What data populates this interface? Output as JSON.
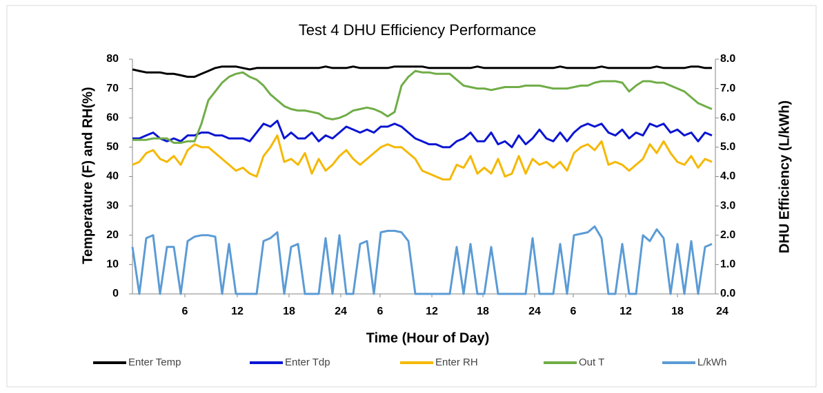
{
  "chart_data": {
    "type": "line",
    "title": "Test 4 DHU Efficiency Performance",
    "x_label": "Time (Hour of Day)",
    "y_label": "Temperature (F) and RH(%)",
    "y2_label": "DHU Efficiency (L/kWh)",
    "x": [
      0,
      1,
      2,
      3,
      4,
      5,
      6,
      7,
      8,
      9,
      10,
      11,
      12,
      13,
      14,
      15,
      16,
      17,
      18,
      19,
      20,
      21,
      22,
      23,
      24,
      25,
      26,
      27,
      28,
      29,
      30,
      31,
      32,
      33,
      34,
      35,
      36,
      37,
      38,
      39,
      40,
      41,
      42,
      43,
      44,
      45,
      46,
      47,
      48,
      49,
      50,
      51,
      52,
      53,
      54,
      55,
      56,
      57,
      58,
      59,
      60,
      61,
      62,
      63,
      64,
      65,
      66,
      67,
      68,
      69,
      70,
      71,
      72,
      73,
      74,
      75,
      76,
      77,
      78,
      79,
      80,
      81,
      82,
      83,
      84
    ],
    "xlim": [
      0,
      85.5
    ],
    "xticks": [
      {
        "value": 7.6,
        "label": "6"
      },
      {
        "value": 15.2,
        "label": "12"
      },
      {
        "value": 22.7,
        "label": "18"
      },
      {
        "value": 30.2,
        "label": "24"
      },
      {
        "value": 35.9,
        "label": "6"
      },
      {
        "value": 43.4,
        "label": "12"
      },
      {
        "value": 50.8,
        "label": "18"
      },
      {
        "value": 58.3,
        "label": "24"
      },
      {
        "value": 63.9,
        "label": "6"
      },
      {
        "value": 71.5,
        "label": "12"
      },
      {
        "value": 79,
        "label": "18"
      },
      {
        "value": 85.5,
        "label": "24"
      }
    ],
    "ylim": [
      0,
      80
    ],
    "yticks": [
      0,
      10,
      20,
      30,
      40,
      50,
      60,
      70,
      80
    ],
    "y2lim": [
      0,
      8
    ],
    "y2ticks": [
      {
        "value": 0,
        "label": "0.0"
      },
      {
        "value": 1,
        "label": "1.0"
      },
      {
        "value": 2,
        "label": "2.0"
      },
      {
        "value": 3,
        "label": "3.0"
      },
      {
        "value": 4,
        "label": "4.0"
      },
      {
        "value": 5,
        "label": "5.0"
      },
      {
        "value": 6,
        "label": "6.0"
      },
      {
        "value": 7,
        "label": "7.0"
      },
      {
        "value": 8,
        "label": "8.0"
      }
    ],
    "grid": false,
    "legend": "bottom",
    "series": [
      {
        "name": "Enter Temp",
        "color": "#000000",
        "values": [
          76.5,
          76,
          75.5,
          75.5,
          75.5,
          75,
          75,
          74.5,
          74,
          74,
          75,
          76,
          77,
          77.5,
          77.5,
          77.5,
          77,
          76.5,
          77,
          77,
          77,
          77,
          77,
          77,
          77,
          77,
          77,
          77,
          77.5,
          77,
          77,
          77,
          77.5,
          77,
          77,
          77,
          77,
          77,
          77.5,
          77.5,
          77.5,
          77.5,
          77.5,
          77,
          77,
          77,
          77,
          77,
          77,
          77,
          77.5,
          77,
          77,
          77,
          77,
          77,
          77,
          77,
          77,
          77,
          77,
          77,
          77.5,
          77,
          77,
          77,
          77,
          77,
          77.5,
          77,
          77,
          77,
          77,
          77,
          77,
          77,
          77.5,
          77,
          77,
          77,
          77,
          77.5,
          77.5,
          77,
          77
        ]
      },
      {
        "name": "Enter Tdp",
        "color": "#0a14d2",
        "values": [
          53,
          53,
          54,
          55,
          53,
          52,
          53,
          52,
          54,
          54,
          55,
          55,
          54,
          54,
          53,
          53,
          53,
          52,
          55,
          58,
          57,
          59,
          53,
          55,
          53,
          53,
          55,
          52,
          54,
          53,
          55,
          57,
          56,
          55,
          56,
          55,
          57,
          57,
          58,
          57,
          55,
          53,
          52,
          51,
          51,
          50,
          50,
          52,
          53,
          55,
          52,
          52,
          55,
          51,
          52,
          50,
          54,
          51,
          53,
          56,
          53,
          52,
          55,
          52,
          55,
          57,
          58,
          57,
          58,
          55,
          54,
          56,
          53,
          55,
          54,
          58,
          57,
          58,
          55,
          56,
          54,
          55,
          52,
          55,
          54
        ]
      },
      {
        "name": "Enter RH",
        "color": "#f5b800",
        "values": [
          44,
          45,
          48,
          49,
          46,
          45,
          47,
          44,
          49,
          51,
          50,
          50,
          48,
          46,
          44,
          42,
          43,
          41,
          40,
          47,
          50,
          54,
          45,
          46,
          44,
          48,
          41,
          46,
          42,
          44,
          47,
          49,
          46,
          44,
          46,
          48,
          50,
          51,
          50,
          50,
          48,
          46,
          42,
          41,
          40,
          39,
          39,
          44,
          43,
          47,
          41,
          43,
          41,
          46,
          40,
          41,
          47,
          41,
          46,
          44,
          45,
          43,
          45,
          42,
          48,
          50,
          51,
          49,
          52,
          44,
          45,
          44,
          42,
          44,
          46,
          51,
          48,
          52,
          48,
          45,
          44,
          47,
          43,
          46,
          45
        ]
      },
      {
        "name": "Out T",
        "color": "#70ad47",
        "values": [
          52.5,
          52.5,
          52.5,
          53,
          53,
          53,
          51.5,
          51.5,
          52,
          52,
          58,
          66,
          69,
          72,
          74,
          75,
          75.5,
          74,
          73,
          71,
          68,
          66,
          64,
          63,
          62.5,
          62.5,
          62,
          61.5,
          60,
          59.5,
          60,
          61,
          62.5,
          63,
          63.5,
          63,
          62,
          60.5,
          62,
          71,
          74,
          76,
          75.5,
          75.5,
          75,
          75,
          75,
          73,
          71,
          70.5,
          70,
          70,
          69.5,
          70,
          70.5,
          70.5,
          70.5,
          71,
          71,
          71,
          70.5,
          70,
          70,
          70,
          70.5,
          71,
          71,
          72,
          72.5,
          72.5,
          72.5,
          72,
          69,
          71,
          72.5,
          72.5,
          72,
          72,
          71,
          70,
          69,
          67,
          65,
          64,
          63
        ]
      },
      {
        "name": "L/kWh",
        "color": "#5b9bd5",
        "axis": "y2",
        "values": [
          1.6,
          0,
          1.9,
          2.0,
          0,
          1.6,
          1.6,
          0,
          1.8,
          1.95,
          2.0,
          2.0,
          1.95,
          0,
          1.7,
          0,
          0,
          0,
          0,
          1.8,
          1.9,
          2.1,
          0,
          1.6,
          1.7,
          0,
          0,
          0,
          1.9,
          0,
          2.0,
          0,
          0,
          1.7,
          1.8,
          0,
          2.1,
          2.15,
          2.15,
          2.1,
          1.8,
          0,
          0,
          0,
          0,
          0,
          0,
          1.6,
          0,
          1.7,
          0,
          0,
          1.6,
          0,
          0,
          0,
          0,
          0,
          1.9,
          0,
          0,
          0,
          1.7,
          0,
          2.0,
          2.05,
          2.1,
          2.3,
          1.9,
          0,
          0,
          1.7,
          0,
          0,
          2.0,
          1.8,
          2.2,
          1.9,
          0,
          1.7,
          0,
          1.8,
          0,
          1.6,
          1.7
        ]
      }
    ]
  }
}
